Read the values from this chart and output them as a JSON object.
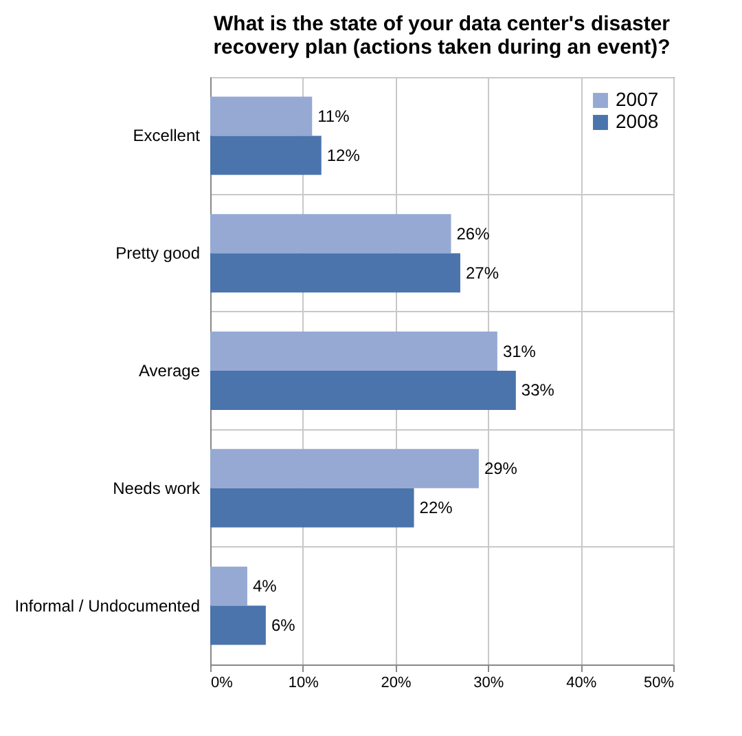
{
  "chart_data": {
    "type": "bar",
    "orientation": "horizontal",
    "title": "What is the state of your data center's disaster recovery plan (actions taken during an event)?",
    "categories": [
      "Excellent",
      "Pretty good",
      "Average",
      "Needs work",
      "Informal / Undocumented"
    ],
    "series": [
      {
        "name": "2007",
        "color": "#95a9d3",
        "values": [
          11,
          26,
          31,
          29,
          4
        ],
        "value_labels": [
          "11%",
          "26%",
          "31%",
          "29%",
          "4%"
        ]
      },
      {
        "name": "2008",
        "color": "#4a74ab",
        "values": [
          12,
          27,
          33,
          22,
          6
        ],
        "value_labels": [
          "12%",
          "27%",
          "33%",
          "22%",
          "6%"
        ]
      }
    ],
    "xlim": [
      0,
      50
    ],
    "xticks": [
      {
        "value": 0,
        "label": "0%"
      },
      {
        "value": 10,
        "label": "10%"
      },
      {
        "value": 20,
        "label": "20%"
      },
      {
        "value": 30,
        "label": "30%"
      },
      {
        "value": 40,
        "label": "40%"
      },
      {
        "value": 50,
        "label": "50%"
      }
    ],
    "grid": "x",
    "legend": "top right"
  }
}
